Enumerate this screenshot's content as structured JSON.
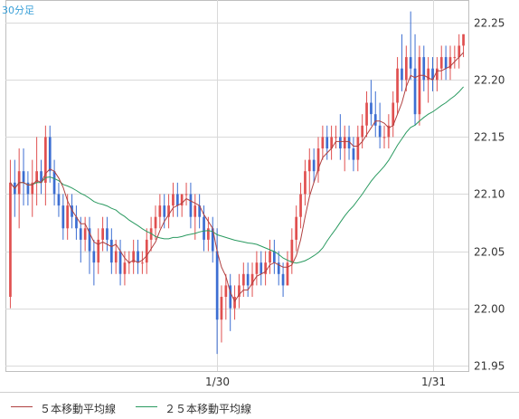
{
  "chart_data": {
    "type": "candlestick",
    "interval_label": "30分足",
    "y_ticks": [
      "22.25",
      "22.20",
      "22.15",
      "22.10",
      "22.05",
      "22.00",
      "21.95"
    ],
    "ylim": [
      21.945,
      22.27
    ],
    "x_ticks": [
      {
        "label": "1/30",
        "index": 47
      },
      {
        "label": "1/31",
        "index": 96
      }
    ],
    "grid": true,
    "colors": {
      "up": "#e05050",
      "down": "#3c6ed2",
      "ma5": "#b04040",
      "ma25": "#2a9a60",
      "grid": "#d9d9d9"
    },
    "legend": [
      {
        "label": "５本移動平均線",
        "color": "#b04040"
      },
      {
        "label": "２５本移動平均線",
        "color": "#2a9a60"
      }
    ],
    "ohlc": [
      [
        22.01,
        22.13,
        22.0,
        22.11
      ],
      [
        22.11,
        22.13,
        22.08,
        22.1
      ],
      [
        22.1,
        22.14,
        22.07,
        22.12
      ],
      [
        22.12,
        22.14,
        22.09,
        22.11
      ],
      [
        22.11,
        22.12,
        22.09,
        22.1
      ],
      [
        22.1,
        22.13,
        22.08,
        22.11
      ],
      [
        22.11,
        22.15,
        22.09,
        22.12
      ],
      [
        22.12,
        22.13,
        22.1,
        22.11
      ],
      [
        22.11,
        22.16,
        22.09,
        22.15
      ],
      [
        22.15,
        22.16,
        22.11,
        22.12
      ],
      [
        22.12,
        22.13,
        22.09,
        22.1
      ],
      [
        22.1,
        22.11,
        22.08,
        22.09
      ],
      [
        22.09,
        22.1,
        22.06,
        22.07
      ],
      [
        22.07,
        22.1,
        22.06,
        22.09
      ],
      [
        22.09,
        22.1,
        22.07,
        22.08
      ],
      [
        22.08,
        22.09,
        22.06,
        22.07
      ],
      [
        22.07,
        22.08,
        22.04,
        22.06
      ],
      [
        22.06,
        22.08,
        22.05,
        22.07
      ],
      [
        22.07,
        22.08,
        22.03,
        22.05
      ],
      [
        22.05,
        22.06,
        22.02,
        22.04
      ],
      [
        22.04,
        22.07,
        22.03,
        22.06
      ],
      [
        22.06,
        22.08,
        22.05,
        22.07
      ],
      [
        22.07,
        22.08,
        22.05,
        22.06
      ],
      [
        22.06,
        22.07,
        22.03,
        22.04
      ],
      [
        22.04,
        22.06,
        22.03,
        22.05
      ],
      [
        22.05,
        22.06,
        22.02,
        22.03
      ],
      [
        22.03,
        22.05,
        22.02,
        22.04
      ],
      [
        22.04,
        22.05,
        22.03,
        22.04
      ],
      [
        22.04,
        22.06,
        22.03,
        22.05
      ],
      [
        22.05,
        22.06,
        22.03,
        22.04
      ],
      [
        22.04,
        22.05,
        22.03,
        22.04
      ],
      [
        22.04,
        22.07,
        22.03,
        22.06
      ],
      [
        22.06,
        22.08,
        22.05,
        22.07
      ],
      [
        22.07,
        22.09,
        22.06,
        22.08
      ],
      [
        22.08,
        22.1,
        22.07,
        22.09
      ],
      [
        22.09,
        22.1,
        22.07,
        22.08
      ],
      [
        22.08,
        22.1,
        22.07,
        22.09
      ],
      [
        22.09,
        22.11,
        22.08,
        22.1
      ],
      [
        22.1,
        22.11,
        22.08,
        22.09
      ],
      [
        22.09,
        22.1,
        22.08,
        22.1
      ],
      [
        22.1,
        22.11,
        22.09,
        22.1
      ],
      [
        22.1,
        22.11,
        22.07,
        22.08
      ],
      [
        22.08,
        22.1,
        22.06,
        22.09
      ],
      [
        22.09,
        22.1,
        22.07,
        22.08
      ],
      [
        22.08,
        22.09,
        22.05,
        22.06
      ],
      [
        22.06,
        22.08,
        22.05,
        22.07
      ],
      [
        22.07,
        22.08,
        22.04,
        22.05
      ],
      [
        22.05,
        22.07,
        21.96,
        21.99
      ],
      [
        21.99,
        22.02,
        21.97,
        22.01
      ],
      [
        22.01,
        22.03,
        21.99,
        22.02
      ],
      [
        22.02,
        22.03,
        21.98,
        22.0
      ],
      [
        22.0,
        22.02,
        21.99,
        22.01
      ],
      [
        22.01,
        22.03,
        22.0,
        22.02
      ],
      [
        22.02,
        22.04,
        22.01,
        22.03
      ],
      [
        22.03,
        22.04,
        22.01,
        22.02
      ],
      [
        22.02,
        22.04,
        22.01,
        22.03
      ],
      [
        22.03,
        22.05,
        22.02,
        22.04
      ],
      [
        22.04,
        22.05,
        22.02,
        22.03
      ],
      [
        22.03,
        22.05,
        22.02,
        22.04
      ],
      [
        22.04,
        22.06,
        22.03,
        22.05
      ],
      [
        22.05,
        22.06,
        22.03,
        22.04
      ],
      [
        22.04,
        22.05,
        22.02,
        22.03
      ],
      [
        22.03,
        22.04,
        22.01,
        22.02
      ],
      [
        22.02,
        22.05,
        22.02,
        22.04
      ],
      [
        22.04,
        22.07,
        22.03,
        22.06
      ],
      [
        22.06,
        22.09,
        22.05,
        22.08
      ],
      [
        22.08,
        22.11,
        22.07,
        22.1
      ],
      [
        22.1,
        22.13,
        22.09,
        22.12
      ],
      [
        22.12,
        22.14,
        22.1,
        22.13
      ],
      [
        22.13,
        22.14,
        22.11,
        22.12
      ],
      [
        22.12,
        22.15,
        22.11,
        22.14
      ],
      [
        22.14,
        22.16,
        22.13,
        22.15
      ],
      [
        22.15,
        22.16,
        22.13,
        22.14
      ],
      [
        22.14,
        22.16,
        22.13,
        22.15
      ],
      [
        22.15,
        22.16,
        22.14,
        22.15
      ],
      [
        22.15,
        22.17,
        22.13,
        22.14
      ],
      [
        22.14,
        22.16,
        22.12,
        22.15
      ],
      [
        22.15,
        22.16,
        22.13,
        22.14
      ],
      [
        22.14,
        22.15,
        22.12,
        22.13
      ],
      [
        22.13,
        22.16,
        22.12,
        22.15
      ],
      [
        22.15,
        22.17,
        22.14,
        22.16
      ],
      [
        22.16,
        22.19,
        22.15,
        22.18
      ],
      [
        22.18,
        22.2,
        22.16,
        22.17
      ],
      [
        22.17,
        22.19,
        22.15,
        22.16
      ],
      [
        22.16,
        22.18,
        22.14,
        22.15
      ],
      [
        22.15,
        22.16,
        22.14,
        22.15
      ],
      [
        22.15,
        22.17,
        22.14,
        22.16
      ],
      [
        22.16,
        22.19,
        22.15,
        22.18
      ],
      [
        22.18,
        22.22,
        22.17,
        22.21
      ],
      [
        22.21,
        22.24,
        22.19,
        22.2
      ],
      [
        22.2,
        22.23,
        22.19,
        22.22
      ],
      [
        22.22,
        22.26,
        22.2,
        22.21
      ],
      [
        22.21,
        22.24,
        22.16,
        22.17
      ],
      [
        22.17,
        22.23,
        22.16,
        22.22
      ],
      [
        22.22,
        22.23,
        22.19,
        22.2
      ],
      [
        22.2,
        22.22,
        22.18,
        22.21
      ],
      [
        22.21,
        22.22,
        22.19,
        22.2
      ],
      [
        22.2,
        22.22,
        22.19,
        22.21
      ],
      [
        22.21,
        22.23,
        22.2,
        22.22
      ],
      [
        22.22,
        22.23,
        22.2,
        22.21
      ],
      [
        22.21,
        22.23,
        22.2,
        22.22
      ],
      [
        22.22,
        22.23,
        22.21,
        22.22
      ],
      [
        22.22,
        22.24,
        22.21,
        22.23
      ],
      [
        22.23,
        22.24,
        22.22,
        22.24
      ]
    ]
  }
}
